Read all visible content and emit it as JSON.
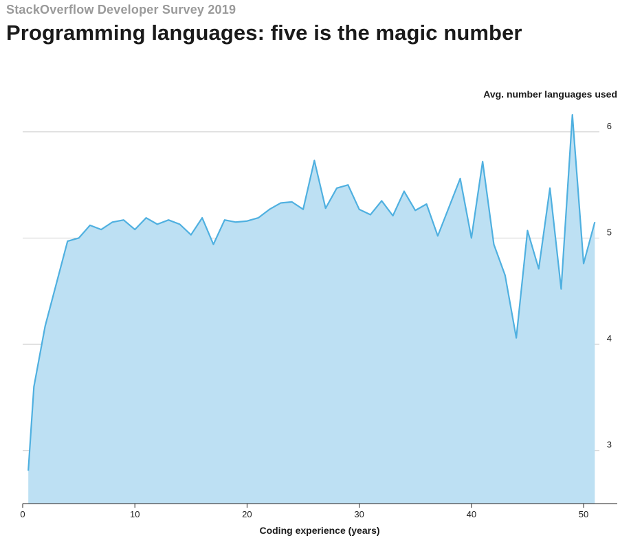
{
  "header": {
    "kicker": "StackOverflow Developer Survey 2019",
    "title": "Programming languages: five is the magic number"
  },
  "colors": {
    "line": "#4fb0e0",
    "area": "#bde0f3",
    "grid": "#cccccc",
    "axis": "#222222"
  },
  "chart_data": {
    "type": "area",
    "title": "Programming languages: five is the magic number",
    "subtitle": "StackOverflow Developer Survey 2019",
    "xlabel": "Coding experience (years)",
    "ylabel": "Avg. number languages used",
    "xlim": [
      0,
      53
    ],
    "ylim": [
      2.5,
      6.4
    ],
    "x_ticks": [
      0,
      10,
      20,
      30,
      40,
      50
    ],
    "y_ticks": [
      3,
      4,
      5,
      6
    ],
    "grid": "horizontal",
    "series": [
      {
        "x": [
          0.5,
          1,
          2,
          3,
          4,
          5,
          6,
          7,
          8,
          9,
          10,
          11,
          12,
          13,
          14,
          15,
          16,
          17,
          18,
          19,
          20,
          21,
          22,
          23,
          24,
          25,
          26,
          27,
          28,
          29,
          30,
          31,
          32,
          33,
          34,
          35,
          36,
          37,
          38,
          39,
          40,
          41,
          42,
          43,
          44,
          45,
          46,
          47,
          48,
          49,
          50,
          51
        ],
        "values": [
          2.81,
          3.6,
          4.17,
          4.57,
          4.97,
          5.0,
          5.12,
          5.08,
          5.15,
          5.17,
          5.08,
          5.19,
          5.13,
          5.17,
          5.13,
          5.03,
          5.19,
          4.94,
          5.17,
          5.15,
          5.16,
          5.19,
          5.27,
          5.33,
          5.34,
          5.27,
          5.73,
          5.28,
          5.47,
          5.5,
          5.27,
          5.22,
          5.35,
          5.21,
          5.44,
          5.26,
          5.32,
          5.02,
          5.29,
          5.56,
          5.0,
          5.72,
          4.94,
          4.65,
          4.06,
          5.07,
          4.71,
          5.47,
          4.52,
          6.16,
          4.76,
          5.15
        ]
      }
    ]
  }
}
